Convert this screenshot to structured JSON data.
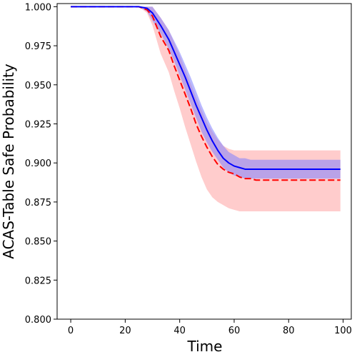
{
  "chart_data": {
    "type": "line",
    "xlabel": "Time",
    "ylabel": "ACAS-Table Safe Probability",
    "xlim": [
      -5,
      103
    ],
    "ylim": [
      0.8,
      1.002
    ],
    "x_ticks": [
      0,
      20,
      40,
      60,
      80,
      100
    ],
    "x_tick_labels": [
      "0",
      "20",
      "40",
      "60",
      "80",
      "100"
    ],
    "y_ticks": [
      0.8,
      0.825,
      0.85,
      0.875,
      0.9,
      0.925,
      0.95,
      0.975,
      1.0
    ],
    "y_tick_labels": [
      "0.800",
      "0.825",
      "0.850",
      "0.875",
      "0.900",
      "0.925",
      "0.950",
      "0.975",
      "1.000"
    ],
    "grid": false,
    "legend": "none",
    "x": [
      0,
      25,
      28,
      30,
      33,
      36,
      38,
      40,
      42,
      44,
      46,
      48,
      50,
      52,
      54,
      56,
      58,
      60,
      62,
      64,
      66,
      68,
      70,
      75,
      80,
      90,
      99
    ],
    "series": [
      {
        "style": "solid",
        "color": "#0000ff",
        "band_color": "#8080ff",
        "values": [
          1.0,
          1.0,
          0.999,
          0.996,
          0.988,
          0.979,
          0.971,
          0.963,
          0.955,
          0.946,
          0.937,
          0.929,
          0.921,
          0.914,
          0.908,
          0.903,
          0.9,
          0.898,
          0.897,
          0.896,
          0.896,
          0.896,
          0.896,
          0.896,
          0.896,
          0.896,
          0.896
        ],
        "upper": [
          1.0,
          1.0,
          1.0,
          1.0,
          0.993,
          0.985,
          0.978,
          0.971,
          0.963,
          0.955,
          0.946,
          0.937,
          0.929,
          0.922,
          0.916,
          0.911,
          0.907,
          0.905,
          0.903,
          0.903,
          0.902,
          0.902,
          0.902,
          0.902,
          0.902,
          0.902,
          0.902
        ],
        "lower": [
          1.0,
          1.0,
          0.997,
          0.991,
          0.983,
          0.973,
          0.965,
          0.956,
          0.947,
          0.938,
          0.929,
          0.92,
          0.913,
          0.907,
          0.902,
          0.897,
          0.894,
          0.892,
          0.891,
          0.89,
          0.89,
          0.89,
          0.89,
          0.89,
          0.89,
          0.89,
          0.89
        ]
      },
      {
        "style": "dashed",
        "color": "#ff0000",
        "band_color": "#ff9999",
        "values": [
          1.0,
          1.0,
          0.998,
          0.994,
          0.981,
          0.972,
          0.962,
          0.953,
          0.944,
          0.935,
          0.925,
          0.917,
          0.91,
          0.904,
          0.899,
          0.896,
          0.894,
          0.893,
          0.891,
          0.89,
          0.89,
          0.889,
          0.889,
          0.889,
          0.889,
          0.889,
          0.889
        ],
        "upper": [
          1.0,
          1.0,
          1.0,
          1.0,
          0.993,
          0.985,
          0.977,
          0.969,
          0.96,
          0.951,
          0.942,
          0.934,
          0.926,
          0.92,
          0.915,
          0.911,
          0.909,
          0.908,
          0.908,
          0.908,
          0.908,
          0.908,
          0.908,
          0.908,
          0.908,
          0.908,
          0.908
        ],
        "lower": [
          1.0,
          1.0,
          0.996,
          0.988,
          0.97,
          0.958,
          0.946,
          0.935,
          0.923,
          0.912,
          0.901,
          0.891,
          0.883,
          0.878,
          0.875,
          0.873,
          0.871,
          0.87,
          0.869,
          0.869,
          0.869,
          0.869,
          0.869,
          0.869,
          0.869,
          0.869,
          0.869
        ]
      }
    ]
  }
}
